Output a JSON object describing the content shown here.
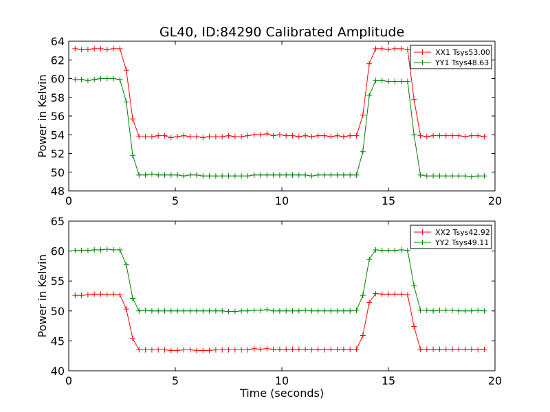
{
  "chart_data": [
    {
      "type": "line",
      "title": "GL40, ID:84290 Calibrated Amplitude",
      "xlabel": "",
      "ylabel": "Power in Kelvin",
      "xlim": [
        0,
        20
      ],
      "ylim": [
        48,
        64
      ],
      "xticks": [
        "0",
        "5",
        "10",
        "15",
        "20"
      ],
      "yticks": [
        "48",
        "50",
        "52",
        "54",
        "56",
        "58",
        "60",
        "62",
        "64"
      ],
      "grid": false,
      "legend_position": "top-right",
      "x": [
        0.3,
        0.6,
        0.9,
        1.2,
        1.5,
        1.8,
        2.1,
        2.4,
        2.7,
        3.0,
        3.3,
        3.6,
        3.9,
        4.2,
        4.5,
        4.8,
        5.1,
        5.4,
        5.7,
        6.0,
        6.3,
        6.6,
        6.9,
        7.2,
        7.5,
        7.8,
        8.1,
        8.4,
        8.7,
        9.0,
        9.3,
        9.6,
        9.9,
        10.2,
        10.5,
        10.8,
        11.1,
        11.4,
        11.7,
        12.0,
        12.3,
        12.6,
        12.9,
        13.2,
        13.5,
        13.8,
        14.1,
        14.4,
        14.7,
        15.0,
        15.3,
        15.6,
        15.9,
        16.2,
        16.5,
        16.8,
        17.1,
        17.4,
        17.7,
        18.0,
        18.3,
        18.6,
        18.9,
        19.2,
        19.5
      ],
      "series": [
        {
          "name": "XX1 Tsys53.00",
          "color": "#ff0000",
          "values": [
            63.2,
            63.1,
            63.1,
            63.2,
            63.2,
            63.1,
            63.2,
            63.2,
            60.9,
            55.7,
            53.8,
            53.8,
            53.8,
            53.9,
            53.9,
            53.7,
            53.8,
            53.9,
            53.8,
            53.8,
            53.7,
            53.8,
            53.8,
            53.8,
            53.9,
            53.8,
            53.8,
            53.9,
            54.0,
            54.0,
            54.1,
            53.9,
            54.0,
            53.9,
            53.9,
            53.8,
            53.9,
            53.8,
            53.9,
            53.9,
            53.8,
            53.9,
            53.8,
            53.9,
            53.9,
            56.1,
            61.6,
            63.2,
            63.2,
            63.1,
            63.2,
            63.2,
            63.1,
            57.8,
            53.9,
            53.8,
            53.9,
            53.9,
            53.9,
            53.9,
            53.9,
            53.8,
            53.9,
            53.9,
            53.8
          ]
        },
        {
          "name": "YY1 Tsys48.63",
          "color": "#008000",
          "values": [
            59.9,
            59.9,
            59.8,
            59.9,
            60.0,
            60.0,
            60.0,
            59.9,
            57.5,
            51.8,
            49.7,
            49.7,
            49.8,
            49.7,
            49.7,
            49.7,
            49.7,
            49.6,
            49.7,
            49.7,
            49.6,
            49.6,
            49.6,
            49.6,
            49.6,
            49.6,
            49.6,
            49.6,
            49.7,
            49.7,
            49.7,
            49.7,
            49.7,
            49.7,
            49.7,
            49.7,
            49.7,
            49.6,
            49.7,
            49.7,
            49.7,
            49.7,
            49.7,
            49.7,
            49.7,
            52.2,
            58.2,
            59.8,
            59.8,
            59.7,
            59.7,
            59.7,
            59.7,
            54.0,
            49.7,
            49.6,
            49.6,
            49.6,
            49.6,
            49.6,
            49.6,
            49.6,
            49.5,
            49.6,
            49.6
          ]
        }
      ]
    },
    {
      "type": "line",
      "title": "",
      "xlabel": "Time (seconds)",
      "ylabel": "Power in Kelvin",
      "xlim": [
        0,
        20
      ],
      "ylim": [
        40,
        65
      ],
      "xticks": [
        "0",
        "5",
        "10",
        "15",
        "20"
      ],
      "yticks": [
        "40",
        "45",
        "50",
        "55",
        "60",
        "65"
      ],
      "grid": false,
      "legend_position": "top-right",
      "x": [
        0.3,
        0.6,
        0.9,
        1.2,
        1.5,
        1.8,
        2.1,
        2.4,
        2.7,
        3.0,
        3.3,
        3.6,
        3.9,
        4.2,
        4.5,
        4.8,
        5.1,
        5.4,
        5.7,
        6.0,
        6.3,
        6.6,
        6.9,
        7.2,
        7.5,
        7.8,
        8.1,
        8.4,
        8.7,
        9.0,
        9.3,
        9.6,
        9.9,
        10.2,
        10.5,
        10.8,
        11.1,
        11.4,
        11.7,
        12.0,
        12.3,
        12.6,
        12.9,
        13.2,
        13.5,
        13.8,
        14.1,
        14.4,
        14.7,
        15.0,
        15.3,
        15.6,
        15.9,
        16.2,
        16.5,
        16.8,
        17.1,
        17.4,
        17.7,
        18.0,
        18.3,
        18.6,
        18.9,
        19.2,
        19.5
      ],
      "series": [
        {
          "name": "XX2 Tsys42.92",
          "color": "#ff0000",
          "values": [
            52.6,
            52.6,
            52.7,
            52.8,
            52.8,
            52.7,
            52.8,
            52.7,
            50.3,
            45.4,
            43.5,
            43.5,
            43.5,
            43.5,
            43.5,
            43.4,
            43.4,
            43.5,
            43.5,
            43.4,
            43.4,
            43.4,
            43.5,
            43.5,
            43.5,
            43.5,
            43.5,
            43.5,
            43.7,
            43.6,
            43.7,
            43.6,
            43.6,
            43.6,
            43.6,
            43.6,
            43.6,
            43.5,
            43.6,
            43.5,
            43.6,
            43.6,
            43.6,
            43.6,
            43.6,
            45.9,
            51.4,
            52.9,
            52.8,
            52.8,
            52.8,
            52.8,
            52.7,
            47.4,
            43.6,
            43.6,
            43.6,
            43.6,
            43.6,
            43.6,
            43.6,
            43.6,
            43.6,
            43.5,
            43.6
          ]
        },
        {
          "name": "YY2 Tsys49.11",
          "color": "#008000",
          "values": [
            60.1,
            60.1,
            60.1,
            60.2,
            60.2,
            60.3,
            60.2,
            60.2,
            57.7,
            52.1,
            50.0,
            50.1,
            50.0,
            50.0,
            50.0,
            50.0,
            50.0,
            50.0,
            50.0,
            50.0,
            50.0,
            50.0,
            50.0,
            50.0,
            49.9,
            49.9,
            50.0,
            50.0,
            50.1,
            50.1,
            50.2,
            50.0,
            50.0,
            50.0,
            50.0,
            50.0,
            50.1,
            50.0,
            50.0,
            50.0,
            50.0,
            50.0,
            50.0,
            50.0,
            50.1,
            52.6,
            58.6,
            60.2,
            60.1,
            60.1,
            60.1,
            60.2,
            60.1,
            54.2,
            50.1,
            50.1,
            50.0,
            50.1,
            50.1,
            50.1,
            50.0,
            50.0,
            50.0,
            50.1,
            50.0
          ]
        }
      ]
    }
  ]
}
